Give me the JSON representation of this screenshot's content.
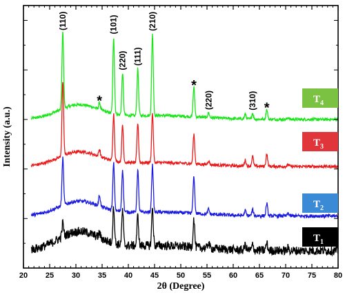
{
  "chart_data": {
    "type": "line",
    "xlabel": "2θ (Degree)",
    "ylabel": "Intensity (a.u.)",
    "xlim": [
      20,
      80
    ],
    "xticks": [
      20,
      25,
      30,
      35,
      40,
      45,
      50,
      55,
      60,
      65,
      70,
      75,
      80
    ],
    "y_ticks_labeled": false,
    "grid": false,
    "series": [
      {
        "name": "T4",
        "base": "T",
        "sub": "4",
        "color": "#19e619",
        "legend_color": "#7cc242",
        "offset": 3.0,
        "noise": 0.03
      },
      {
        "name": "T3",
        "base": "T",
        "sub": "3",
        "color": "#ea1a1a",
        "legend_color": "#e0353b",
        "offset": 2.05,
        "noise": 0.03
      },
      {
        "name": "T2",
        "base": "T",
        "sub": "2",
        "color": "#1a1ae0",
        "legend_color": "#3b8ad6",
        "offset": 1.05,
        "noise": 0.035
      },
      {
        "name": "T1",
        "base": "T",
        "sub": "1",
        "color": "#000000",
        "legend_color": "#000000",
        "offset": 0.35,
        "noise": 0.09
      }
    ],
    "peaks": [
      {
        "x": 27.5,
        "h": [
          1.55,
          1.5,
          0.95,
          0.28
        ]
      },
      {
        "x": 34.5,
        "h": [
          0.14,
          0.15,
          0.22,
          0.1
        ]
      },
      {
        "x": 37.2,
        "h": [
          1.55,
          0.95,
          0.95,
          0.75
        ]
      },
      {
        "x": 38.9,
        "h": [
          0.85,
          0.75,
          0.85,
          0.7
        ]
      },
      {
        "x": 41.8,
        "h": [
          0.95,
          0.8,
          0.85,
          0.6
        ]
      },
      {
        "x": 44.6,
        "h": [
          1.65,
          1.0,
          0.95,
          0.75
        ]
      },
      {
        "x": 52.5,
        "h": [
          0.6,
          0.6,
          0.75,
          0.58
        ]
      },
      {
        "x": 55.3,
        "h": [
          0.1,
          0.08,
          0.1,
          0.12
        ]
      },
      {
        "x": 62.3,
        "h": [
          0.1,
          0.12,
          0.1,
          0.1
        ]
      },
      {
        "x": 63.7,
        "h": [
          0.12,
          0.2,
          0.12,
          0.1
        ]
      },
      {
        "x": 66.4,
        "h": [
          0.2,
          0.25,
          0.25,
          0.15
        ]
      },
      {
        "x": 70.5,
        "h": [
          0.04,
          0.04,
          0.06,
          0.05
        ]
      }
    ],
    "annotations": [
      {
        "label": "(110)",
        "type": "hkl",
        "x": 27.5
      },
      {
        "label": "(101)",
        "type": "hkl",
        "x": 37.2
      },
      {
        "label": "(220)",
        "type": "hkl",
        "x": 38.9
      },
      {
        "label": "(111)",
        "type": "hkl",
        "x": 41.8
      },
      {
        "label": "(210)",
        "type": "hkl",
        "x": 44.6
      },
      {
        "label": "(220)",
        "type": "hkl",
        "x": 55.3
      },
      {
        "label": "(310)",
        "type": "hkl",
        "x": 63.7
      },
      {
        "label": "*",
        "type": "star",
        "x": 34.5
      },
      {
        "label": "*",
        "type": "star",
        "x": 52.5
      },
      {
        "label": "*",
        "type": "star",
        "x": 66.4
      }
    ]
  }
}
